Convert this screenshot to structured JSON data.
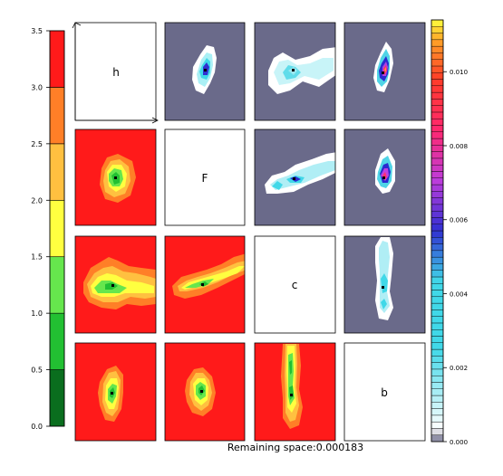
{
  "footer": {
    "remaining_label": "Remaining space:0.000183"
  },
  "colors": {
    "red": "#ff1a1a",
    "orange": "#ff7f27",
    "lightorange": "#ffc040",
    "yellow": "#ffff40",
    "lightgreen": "#66e64d",
    "green": "#22c032",
    "darkgreen": "#0a6e1e",
    "slate": "#6a6a8a"
  },
  "chart_data": [
    {
      "type": "colorbar",
      "ticks": [
        0.0,
        0.5,
        1.0,
        1.5,
        2.0,
        2.5,
        3.0,
        3.5
      ],
      "tick_labels": [
        "0.0",
        "0.5",
        "1.0",
        "1.5",
        "2.0",
        "2.5",
        "3.0",
        "3.5"
      ],
      "bands": [
        {
          "from": 0.0,
          "to": 0.5,
          "color": "#0a6e1e"
        },
        {
          "from": 0.5,
          "to": 1.0,
          "color": "#22c032"
        },
        {
          "from": 1.0,
          "to": 1.5,
          "color": "#66e64d"
        },
        {
          "from": 1.5,
          "to": 2.0,
          "color": "#ffff40"
        },
        {
          "from": 2.0,
          "to": 2.5,
          "color": "#ffc040"
        },
        {
          "from": 2.5,
          "to": 3.0,
          "color": "#ff7f27"
        },
        {
          "from": 3.0,
          "to": 3.5,
          "color": "#ff1a1a"
        }
      ],
      "ylim": [
        0.0,
        3.5
      ]
    },
    {
      "type": "colorbar",
      "ticks": [
        0.0,
        0.002,
        0.004,
        0.006,
        0.008,
        0.01
      ],
      "tick_labels": [
        "0.000",
        "0.002",
        "0.004",
        "0.006",
        "0.008",
        "0.010"
      ],
      "ylim": [
        0.0,
        0.0114
      ]
    },
    {
      "type": "heatmap",
      "grid": "4x4 pairwise matrix",
      "diagonal_labels": [
        "h",
        "F",
        "c",
        "b"
      ]
    }
  ]
}
